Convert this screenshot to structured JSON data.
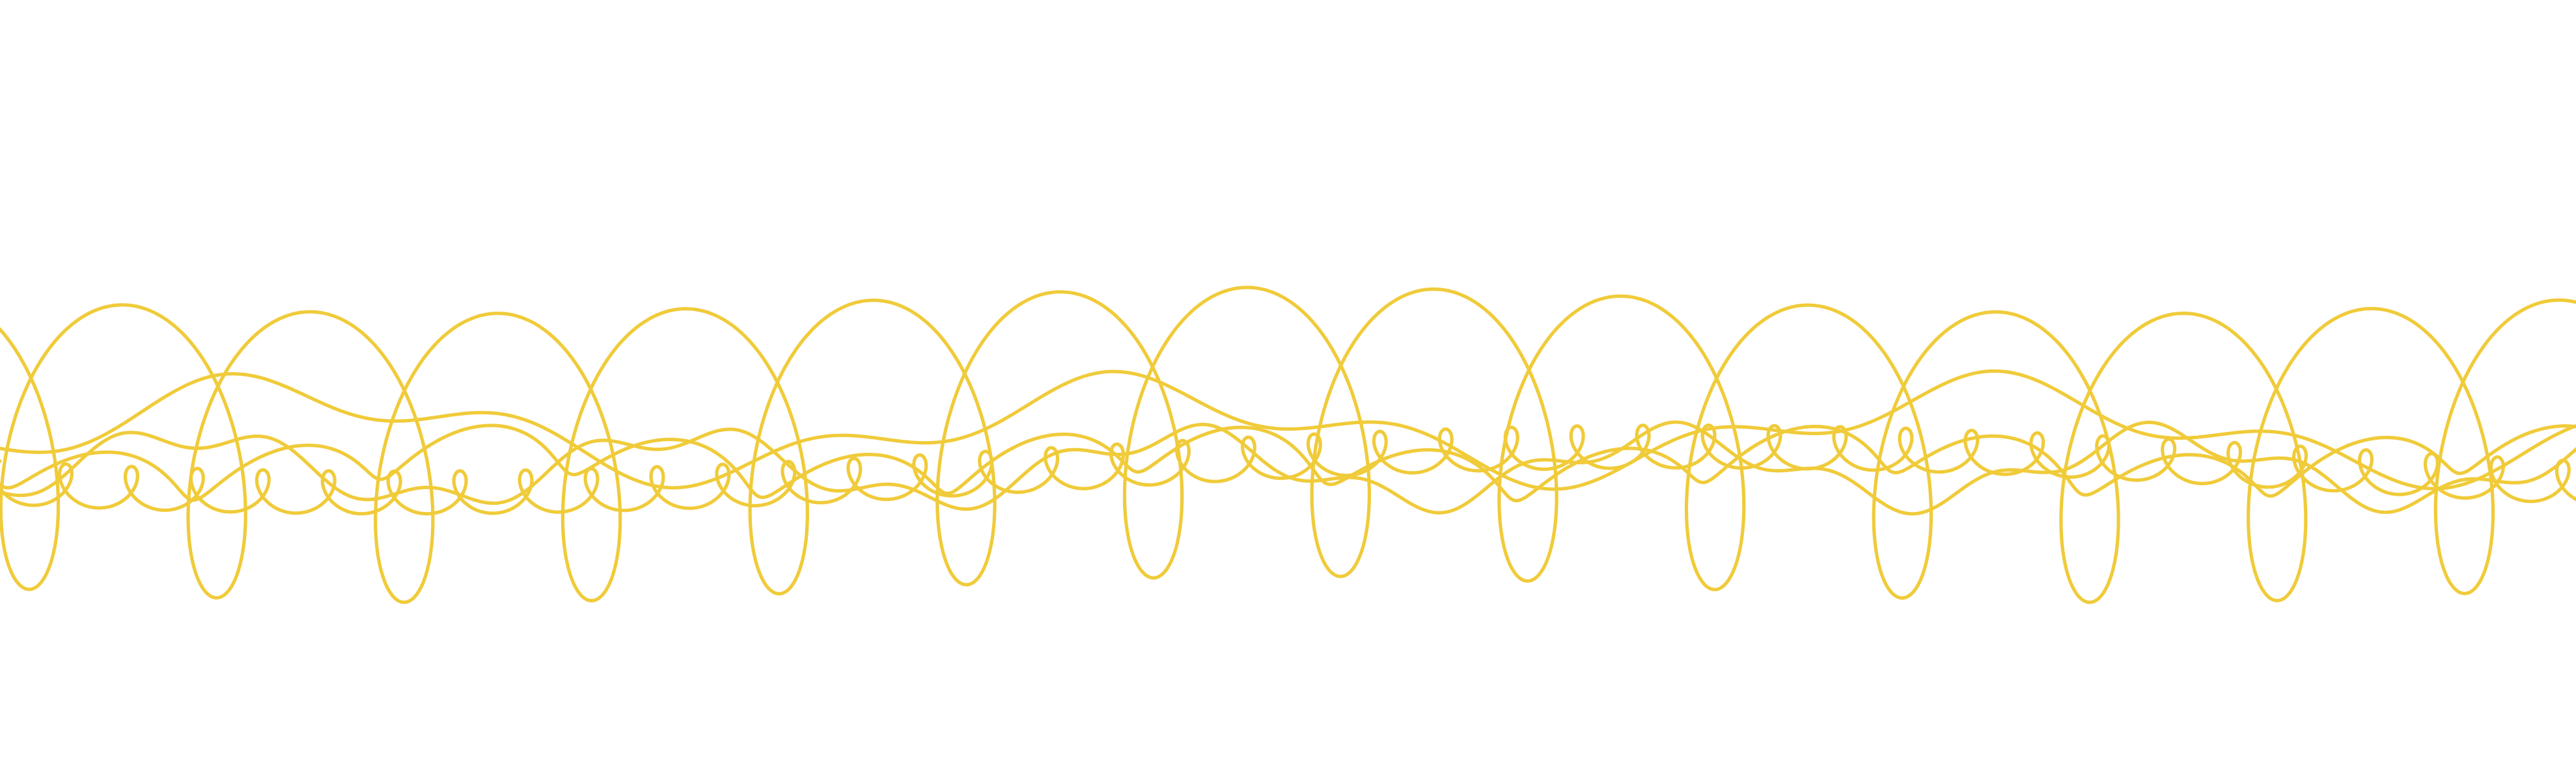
{
  "artwork": {
    "subject": "decorative-wave-lines",
    "background_color": "#ffffff",
    "stroke_color": "#f0cb3a",
    "line_count": 5
  }
}
